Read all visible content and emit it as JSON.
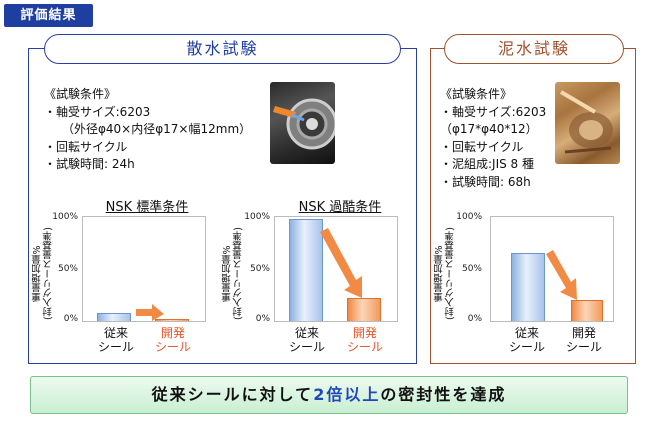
{
  "badge": "評価結果",
  "water": {
    "title": "散水試験",
    "conditions": [
      "《試験条件》",
      "・軸受サイズ:6203",
      "（外径φ40×内径φ17×幅12mm）",
      "・回転サイクル",
      "・試験時間: 24h"
    ],
    "charts": [
      {
        "title": "NSK 標準条件"
      },
      {
        "title": "NSK 過酷条件"
      }
    ]
  },
  "mud": {
    "title": "泥水試験",
    "conditions": [
      "《試験条件》",
      "・軸受サイズ:6203",
      "（φ17*φ40*12）",
      "・回転サイクル",
      "・泥組成:JIS 8 種",
      "・試験時間: 68h"
    ]
  },
  "axis": {
    "ylabel_line1": "重量増加量%",
    "ylabel_line2": "(封入グリース量基準)",
    "ticks": [
      "100%",
      "50%",
      "0%"
    ]
  },
  "labels": {
    "conventional": [
      "従来",
      "シール"
    ],
    "developed": [
      "開発",
      "シール"
    ]
  },
  "summary": {
    "pre": "従来シールに対して",
    "highlight": "2倍以上",
    "post": "の密封性を達成"
  },
  "colors": {
    "blue_frame": "#2b3fa6",
    "brown_frame": "#a0522d",
    "developed_text": "#e8562a",
    "arrow": "#f08a45"
  },
  "chart_data": [
    {
      "type": "bar",
      "title": "NSK 標準条件",
      "categories": [
        "従来シール",
        "開発シール"
      ],
      "values": [
        8,
        1
      ],
      "ylim": [
        0,
        100
      ],
      "ylabel": "重量増加量% (封入グリース量基準)"
    },
    {
      "type": "bar",
      "title": "NSK 過酷条件",
      "categories": [
        "従来シール",
        "開発シール"
      ],
      "values": [
        98,
        22
      ],
      "ylim": [
        0,
        100
      ],
      "ylabel": "重量増加量% (封入グリース量基準)"
    },
    {
      "type": "bar",
      "title": "",
      "categories": [
        "従来シール",
        "開発シール"
      ],
      "values": [
        65,
        20
      ],
      "ylim": [
        0,
        100
      ],
      "ylabel": "重量増加量% (封入グリース量基準)"
    }
  ]
}
